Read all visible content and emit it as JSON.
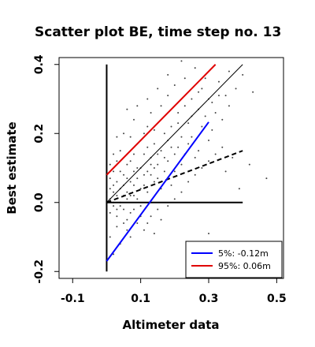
{
  "chart_data": {
    "type": "scatter",
    "title": "Scatter plot BE, time step no. 13",
    "xlabel": "Altimeter data",
    "ylabel": "Best estimate",
    "xlim": [
      -0.14,
      0.52
    ],
    "ylim": [
      -0.22,
      0.42
    ],
    "xticks": [
      -0.1,
      0.1,
      0.3,
      0.5
    ],
    "xtick_labels": [
      "-0.1",
      "0.1",
      "0.3",
      "0.5"
    ],
    "yticks": [
      -0.2,
      0.0,
      0.2,
      0.4
    ],
    "ytick_labels": [
      "-0.2",
      "0.0",
      "0.2",
      "0.4"
    ],
    "grid": false,
    "legend_position": "bottom-right",
    "point_color": "#444444",
    "series": [
      {
        "name": "5%: -0.12m",
        "color": "#0000ff",
        "style": "solid",
        "x": [
          0.0,
          0.3
        ],
        "y": [
          -0.17,
          0.233
        ]
      },
      {
        "name": "95%:  0.06m",
        "color": "#e00000",
        "style": "solid",
        "x": [
          0.0,
          0.32
        ],
        "y": [
          0.08,
          0.4
        ]
      }
    ],
    "reference_lines": [
      {
        "kind": "one-to-one",
        "color": "#000000",
        "style": "solid",
        "x": [
          0.0,
          0.4
        ],
        "y": [
          0.0,
          0.4
        ]
      },
      {
        "kind": "regression",
        "color": "#000000",
        "style": "dashed",
        "x": [
          0.0,
          0.4
        ],
        "y": [
          0.0,
          0.15
        ]
      },
      {
        "kind": "zero-axis-vertical",
        "color": "#000000",
        "style": "solid",
        "x": [
          0.0,
          0.0
        ],
        "y": [
          -0.2,
          0.4
        ]
      },
      {
        "kind": "zero-axis-horizontal",
        "color": "#000000",
        "style": "solid",
        "x": [
          0.0,
          0.4
        ],
        "y": [
          0.0,
          0.0
        ]
      }
    ],
    "scatter_points": [
      [
        0.01,
        0.01
      ],
      [
        0.02,
        -0.01
      ],
      [
        0.03,
        0.02
      ],
      [
        0.01,
        -0.03
      ],
      [
        0.04,
        0.04
      ],
      [
        0.02,
        0.05
      ],
      [
        0.05,
        -0.02
      ],
      [
        0.03,
        -0.04
      ],
      [
        0.06,
        0.03
      ],
      [
        0.04,
        0.0
      ],
      [
        0.07,
        0.06
      ],
      [
        0.05,
        0.08
      ],
      [
        0.02,
        0.09
      ],
      [
        0.08,
        0.02
      ],
      [
        0.06,
        -0.05
      ],
      [
        0.09,
        0.07
      ],
      [
        0.1,
        0.1
      ],
      [
        0.03,
        0.12
      ],
      [
        0.07,
        0.12
      ],
      [
        0.11,
        0.05
      ],
      [
        0.12,
        0.09
      ],
      [
        0.08,
        0.14
      ],
      [
        0.01,
        0.07
      ],
      [
        0.04,
        0.15
      ],
      [
        0.13,
        0.13
      ],
      [
        0.1,
        -0.01
      ],
      [
        0.14,
        0.06
      ],
      [
        0.15,
        0.11
      ],
      [
        0.09,
        0.17
      ],
      [
        0.12,
        0.16
      ],
      [
        0.16,
        0.15
      ],
      [
        0.05,
        0.2
      ],
      [
        0.11,
        0.2
      ],
      [
        0.17,
        0.09
      ],
      [
        0.18,
        0.18
      ],
      [
        0.14,
        0.21
      ],
      [
        0.2,
        0.14
      ],
      [
        0.08,
        0.24
      ],
      [
        0.13,
        0.26
      ],
      [
        0.19,
        0.22
      ],
      [
        0.22,
        0.19
      ],
      [
        0.16,
        0.28
      ],
      [
        0.21,
        0.26
      ],
      [
        0.24,
        0.23
      ],
      [
        0.18,
        0.31
      ],
      [
        0.25,
        0.3
      ],
      [
        0.2,
        0.34
      ],
      [
        0.27,
        0.27
      ],
      [
        0.23,
        0.36
      ],
      [
        0.28,
        0.33
      ],
      [
        0.26,
        0.39
      ],
      [
        0.3,
        0.3
      ],
      [
        0.33,
        0.35
      ],
      [
        0.35,
        0.31
      ],
      [
        0.38,
        0.33
      ],
      [
        0.29,
        0.25
      ],
      [
        0.24,
        0.17
      ],
      [
        0.31,
        0.21
      ],
      [
        0.22,
        0.11
      ],
      [
        0.26,
        0.13
      ],
      [
        0.34,
        0.24
      ],
      [
        0.19,
        0.05
      ],
      [
        0.15,
        -0.02
      ],
      [
        0.11,
        -0.08
      ],
      [
        0.07,
        -0.1
      ],
      [
        0.04,
        -0.12
      ],
      [
        0.02,
        -0.15
      ],
      [
        0.09,
        -0.06
      ],
      [
        0.13,
        -0.04
      ],
      [
        0.06,
        -0.08
      ],
      [
        0.01,
        -0.1
      ],
      [
        0.03,
        -0.07
      ],
      [
        0.05,
        -0.06
      ],
      [
        0.0,
        0.03
      ],
      [
        0.0,
        -0.02
      ],
      [
        0.01,
        0.04
      ],
      [
        0.02,
        0.0
      ],
      [
        0.03,
        0.06
      ],
      [
        0.04,
        -0.01
      ],
      [
        0.06,
        0.01
      ],
      [
        0.05,
        0.05
      ],
      [
        0.07,
        0.02
      ],
      [
        0.08,
        0.05
      ],
      [
        0.1,
        0.04
      ],
      [
        0.12,
        0.03
      ],
      [
        0.09,
        0.1
      ],
      [
        0.06,
        0.11
      ],
      [
        0.14,
        0.1
      ],
      [
        0.15,
        0.07
      ],
      [
        0.17,
        0.13
      ],
      [
        0.16,
        0.04
      ],
      [
        0.13,
        0.08
      ],
      [
        0.11,
        0.14
      ],
      [
        0.1,
        0.18
      ],
      [
        0.07,
        0.19
      ],
      [
        0.12,
        0.22
      ],
      [
        0.14,
        0.17
      ],
      [
        0.18,
        0.12
      ],
      [
        0.2,
        0.09
      ],
      [
        0.21,
        0.16
      ],
      [
        0.23,
        0.14
      ],
      [
        0.25,
        0.19
      ],
      [
        0.27,
        0.15
      ],
      [
        0.28,
        0.22
      ],
      [
        0.3,
        0.18
      ],
      [
        0.32,
        0.26
      ],
      [
        0.36,
        0.28
      ],
      [
        0.4,
        0.37
      ],
      [
        0.43,
        0.32
      ],
      [
        0.47,
        0.07
      ],
      [
        0.42,
        0.11
      ],
      [
        0.39,
        0.04
      ],
      [
        0.37,
        0.13
      ],
      [
        0.35,
        0.09
      ],
      [
        0.3,
        -0.09
      ],
      [
        0.22,
        0.41
      ],
      [
        0.18,
        0.37
      ],
      [
        0.12,
        0.3
      ],
      [
        0.09,
        0.28
      ],
      [
        0.15,
        0.33
      ],
      [
        0.06,
        0.27
      ],
      [
        0.03,
        0.19
      ],
      [
        0.02,
        0.14
      ],
      [
        0.01,
        0.11
      ],
      [
        0.0,
        0.08
      ],
      [
        0.04,
        0.09
      ],
      [
        0.08,
        -0.02
      ],
      [
        0.1,
        -0.04
      ],
      [
        0.12,
        -0.06
      ],
      [
        0.14,
        -0.09
      ],
      [
        0.16,
        -0.05
      ],
      [
        0.18,
        -0.01
      ],
      [
        0.2,
        0.01
      ],
      [
        0.22,
        0.03
      ],
      [
        0.24,
        0.06
      ],
      [
        0.26,
        0.08
      ],
      [
        0.28,
        0.1
      ],
      [
        0.3,
        0.12
      ],
      [
        0.32,
        0.14
      ],
      [
        0.34,
        0.16
      ],
      [
        0.02,
        0.03
      ],
      [
        0.03,
        -0.02
      ],
      [
        0.05,
        0.02
      ],
      [
        0.06,
        0.07
      ],
      [
        0.07,
        -0.03
      ],
      [
        0.08,
        0.09
      ],
      [
        0.09,
        0.01
      ],
      [
        0.11,
        0.08
      ],
      [
        0.13,
        0.11
      ],
      [
        0.15,
        0.14
      ],
      [
        0.17,
        0.2
      ],
      [
        0.19,
        0.16
      ],
      [
        0.21,
        0.23
      ],
      [
        0.23,
        0.28
      ],
      [
        0.25,
        0.25
      ],
      [
        0.27,
        0.32
      ],
      [
        0.29,
        0.36
      ],
      [
        0.31,
        0.29
      ],
      [
        0.33,
        0.31
      ],
      [
        0.36,
        0.38
      ]
    ]
  }
}
